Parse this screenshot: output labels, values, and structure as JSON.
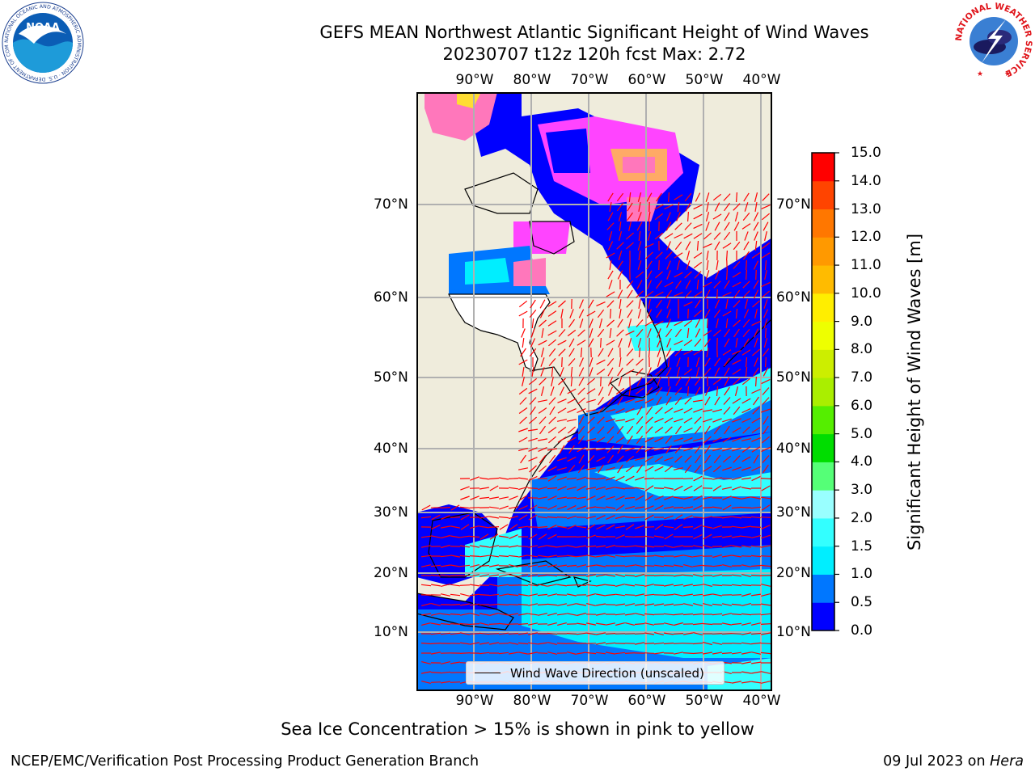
{
  "title": {
    "line1": "GEFS MEAN Northwest Atlantic Significant Height of Wind Waves",
    "line2": "20230707 t12z 120h fcst   Max: 2.72"
  },
  "logos": {
    "noaa": {
      "text": "NOAA",
      "ring": "NATIONAL OCEANIC AND ATMOSPHERIC ADMINISTRATION · U.S. DEPARTMENT OF COMMERCE ·"
    },
    "nws": {
      "ring": "NATIONAL WEATHER SERVICE"
    }
  },
  "map": {
    "lon_labels": [
      "90°W",
      "80°W",
      "70°W",
      "60°W",
      "50°W",
      "40°W"
    ],
    "lat_labels": [
      "70°N",
      "60°N",
      "50°N",
      "40°N",
      "30°N",
      "20°N",
      "10°N"
    ],
    "legend_label": "Wind Wave Direction (unscaled)",
    "land_color": "#efecdc",
    "ice_colors": [
      "#ff44ff",
      "#ff77bb",
      "#ffaa66",
      "#ffdd33"
    ],
    "arrow_color": "#ff0000"
  },
  "colorbar": {
    "label": "Significant Height of Wind Waves [m]",
    "ticks": [
      "0.0",
      "0.5",
      "1.0",
      "1.5",
      "2.0",
      "3.0",
      "4.0",
      "5.0",
      "6.0",
      "7.0",
      "8.0",
      "9.0",
      "10.0",
      "11.0",
      "12.0",
      "13.0",
      "14.0",
      "15.0"
    ],
    "colors": [
      "#0000ff",
      "#0077ff",
      "#00eeff",
      "#33ffff",
      "#99ffff",
      "#55ff77",
      "#00dd00",
      "#55ee00",
      "#aaee00",
      "#ccee00",
      "#eeff00",
      "#ffee00",
      "#ffbb00",
      "#ff9900",
      "#ff7700",
      "#ff4400",
      "#ff0000"
    ]
  },
  "note": "Sea Ice Concentration > 15% is shown in pink to yellow",
  "footer": {
    "left": "NCEP/EMC/Verification Post Processing Product Generation Branch",
    "right_date": "09 Jul 2023 on ",
    "right_machine": "Hera"
  }
}
